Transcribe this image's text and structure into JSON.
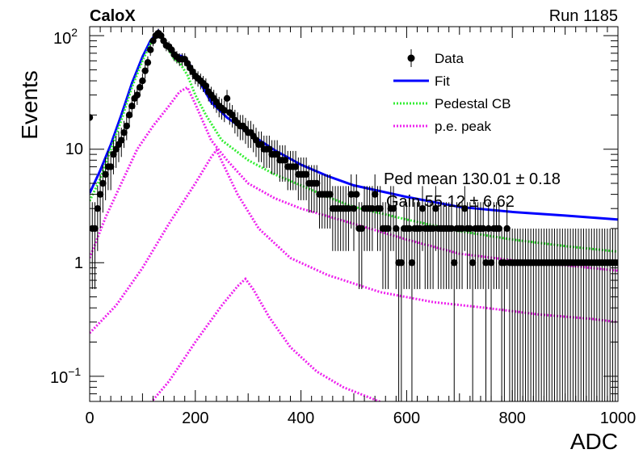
{
  "header": {
    "brand": "CaloX",
    "run": "Run 1185"
  },
  "overlay_text": {
    "line1": "Ped mean 130.01 ± 0.18",
    "line2": "Gain 55.12 ± 6.62"
  },
  "chart_data": {
    "type": "scatter",
    "xlabel": "ADC",
    "ylabel": "Events",
    "xlim": [
      0,
      1000
    ],
    "ylim": [
      0.06,
      120
    ],
    "yscale": "log",
    "x_ticks": [
      0,
      200,
      400,
      600,
      800,
      1000
    ],
    "x_tick_labels": [
      "0",
      "200",
      "400",
      "600",
      "800",
      "1000"
    ],
    "y_ticks": [
      0.1,
      1,
      10,
      100
    ],
    "y_tick_labels": {
      "base": "10",
      "exp_low": "−1",
      "one": "1",
      "ten": "10",
      "exp_high": "2"
    },
    "legend": {
      "position": "top-right",
      "entries": [
        {
          "label": "Data",
          "style": "marker",
          "color": "#000000"
        },
        {
          "label": "Fit",
          "style": "solid",
          "color": "#0000ff"
        },
        {
          "label": "Pedestal CB",
          "style": "dotted",
          "color": "#33ee33"
        },
        {
          "label": "p.e. peak",
          "style": "dotted",
          "color": "#ee22ee"
        }
      ]
    },
    "series": [
      {
        "name": "Data",
        "color": "#000000",
        "points": [
          [
            0,
            19
          ],
          [
            5,
            2
          ],
          [
            10,
            2
          ],
          [
            15,
            3
          ],
          [
            20,
            4
          ],
          [
            25,
            5
          ],
          [
            30,
            6
          ],
          [
            35,
            7
          ],
          [
            40,
            7
          ],
          [
            45,
            9
          ],
          [
            50,
            10
          ],
          [
            55,
            11
          ],
          [
            60,
            12
          ],
          [
            65,
            14
          ],
          [
            70,
            16
          ],
          [
            75,
            20
          ],
          [
            80,
            24
          ],
          [
            85,
            28
          ],
          [
            90,
            30
          ],
          [
            95,
            35
          ],
          [
            100,
            40
          ],
          [
            105,
            49
          ],
          [
            110,
            58
          ],
          [
            115,
            75
          ],
          [
            120,
            90
          ],
          [
            125,
            100
          ],
          [
            130,
            105
          ],
          [
            135,
            100
          ],
          [
            140,
            90
          ],
          [
            145,
            82
          ],
          [
            150,
            80
          ],
          [
            155,
            75
          ],
          [
            160,
            68
          ],
          [
            165,
            65
          ],
          [
            170,
            62
          ],
          [
            175,
            62
          ],
          [
            180,
            62
          ],
          [
            185,
            57
          ],
          [
            190,
            52
          ],
          [
            195,
            48
          ],
          [
            200,
            44
          ],
          [
            205,
            42
          ],
          [
            210,
            40
          ],
          [
            215,
            38
          ],
          [
            220,
            36
          ],
          [
            225,
            32
          ],
          [
            230,
            30
          ],
          [
            235,
            28
          ],
          [
            240,
            26
          ],
          [
            245,
            24
          ],
          [
            250,
            23
          ],
          [
            255,
            22
          ],
          [
            260,
            28
          ],
          [
            265,
            21
          ],
          [
            270,
            20
          ],
          [
            275,
            18
          ],
          [
            280,
            17
          ],
          [
            285,
            16
          ],
          [
            290,
            16
          ],
          [
            295,
            15
          ],
          [
            300,
            14
          ],
          [
            305,
            14
          ],
          [
            310,
            13
          ],
          [
            315,
            12
          ],
          [
            320,
            11
          ],
          [
            325,
            11
          ],
          [
            330,
            10
          ],
          [
            335,
            10
          ],
          [
            340,
            10
          ],
          [
            345,
            9
          ],
          [
            350,
            9
          ],
          [
            355,
            9
          ],
          [
            360,
            8
          ],
          [
            365,
            8
          ],
          [
            370,
            8
          ],
          [
            375,
            7
          ],
          [
            380,
            7
          ],
          [
            385,
            7
          ],
          [
            390,
            7
          ],
          [
            395,
            6
          ],
          [
            400,
            6
          ],
          [
            405,
            6
          ],
          [
            410,
            6
          ],
          [
            415,
            5
          ],
          [
            420,
            5
          ],
          [
            425,
            5
          ],
          [
            430,
            5
          ],
          [
            435,
            4
          ],
          [
            440,
            4
          ],
          [
            445,
            4
          ],
          [
            450,
            4
          ],
          [
            455,
            4
          ],
          [
            460,
            3
          ],
          [
            465,
            3
          ],
          [
            470,
            3
          ],
          [
            475,
            3
          ],
          [
            480,
            3
          ],
          [
            485,
            3
          ],
          [
            490,
            3
          ],
          [
            495,
            4
          ],
          [
            500,
            3
          ],
          [
            505,
            4
          ],
          [
            510,
            2
          ],
          [
            515,
            2
          ],
          [
            520,
            3
          ],
          [
            525,
            3
          ],
          [
            530,
            3
          ],
          [
            535,
            3
          ],
          [
            540,
            4
          ],
          [
            545,
            3
          ],
          [
            550,
            3
          ],
          [
            555,
            2
          ],
          [
            560,
            2
          ],
          [
            565,
            2
          ],
          [
            570,
            3
          ],
          [
            575,
            3
          ],
          [
            580,
            2
          ],
          [
            585,
            1
          ],
          [
            590,
            1
          ],
          [
            595,
            2
          ],
          [
            600,
            2
          ],
          [
            605,
            2
          ],
          [
            610,
            1
          ],
          [
            615,
            2
          ],
          [
            620,
            2
          ],
          [
            625,
            2
          ],
          [
            630,
            3
          ],
          [
            635,
            2
          ],
          [
            640,
            2
          ],
          [
            645,
            2
          ],
          [
            650,
            2
          ],
          [
            655,
            3
          ],
          [
            660,
            2
          ],
          [
            665,
            2
          ],
          [
            670,
            2
          ],
          [
            675,
            2
          ],
          [
            680,
            2
          ],
          [
            685,
            2
          ],
          [
            690,
            1
          ],
          [
            695,
            2
          ],
          [
            700,
            2
          ],
          [
            705,
            2
          ],
          [
            710,
            3
          ],
          [
            715,
            2
          ],
          [
            720,
            2
          ],
          [
            725,
            1
          ],
          [
            730,
            2
          ],
          [
            735,
            2
          ],
          [
            740,
            2
          ],
          [
            745,
            2
          ],
          [
            750,
            1
          ],
          [
            755,
            2
          ],
          [
            760,
            1
          ],
          [
            765,
            2
          ],
          [
            770,
            2
          ],
          [
            775,
            2
          ],
          [
            780,
            1
          ],
          [
            785,
            1
          ],
          [
            790,
            2
          ],
          [
            795,
            1
          ],
          [
            800,
            1
          ],
          [
            805,
            1
          ],
          [
            810,
            1
          ],
          [
            815,
            1
          ],
          [
            820,
            1
          ],
          [
            825,
            1
          ],
          [
            830,
            1
          ],
          [
            835,
            1
          ],
          [
            840,
            1
          ],
          [
            845,
            1
          ],
          [
            850,
            1
          ],
          [
            855,
            1
          ],
          [
            860,
            1
          ],
          [
            865,
            1
          ],
          [
            870,
            1
          ],
          [
            875,
            1
          ],
          [
            880,
            1
          ],
          [
            885,
            1
          ],
          [
            890,
            1
          ],
          [
            895,
            1
          ],
          [
            900,
            1
          ],
          [
            905,
            1
          ],
          [
            910,
            1
          ],
          [
            915,
            1
          ],
          [
            920,
            1
          ],
          [
            925,
            1
          ],
          [
            930,
            1
          ],
          [
            935,
            1
          ],
          [
            940,
            1
          ],
          [
            945,
            1
          ],
          [
            950,
            1
          ],
          [
            955,
            1
          ],
          [
            960,
            1
          ],
          [
            965,
            1
          ],
          [
            970,
            1
          ],
          [
            975,
            1
          ],
          [
            980,
            1
          ],
          [
            985,
            1
          ],
          [
            990,
            1
          ],
          [
            995,
            1
          ],
          [
            1000,
            1
          ]
        ]
      },
      {
        "name": "Fit",
        "color": "#0000ff",
        "points": [
          [
            0,
            4.1
          ],
          [
            20,
            6.5
          ],
          [
            40,
            11
          ],
          [
            60,
            20
          ],
          [
            80,
            38
          ],
          [
            100,
            65
          ],
          [
            115,
            90
          ],
          [
            130,
            110
          ],
          [
            145,
            80
          ],
          [
            160,
            68
          ],
          [
            175,
            66
          ],
          [
            190,
            55
          ],
          [
            210,
            38
          ],
          [
            230,
            26
          ],
          [
            260,
            19
          ],
          [
            300,
            14
          ],
          [
            350,
            9.8
          ],
          [
            400,
            7.3
          ],
          [
            450,
            5.8
          ],
          [
            500,
            4.8
          ],
          [
            600,
            3.8
          ],
          [
            700,
            3.1
          ],
          [
            800,
            2.8
          ],
          [
            900,
            2.6
          ],
          [
            1000,
            2.4
          ]
        ]
      },
      {
        "name": "Pedestal CB",
        "color": "#33ee33",
        "points": [
          [
            0,
            3.5
          ],
          [
            20,
            5.5
          ],
          [
            40,
            10
          ],
          [
            60,
            18
          ],
          [
            80,
            35
          ],
          [
            100,
            60
          ],
          [
            115,
            85
          ],
          [
            130,
            100
          ],
          [
            140,
            90
          ],
          [
            150,
            75
          ],
          [
            160,
            62
          ],
          [
            170,
            58
          ],
          [
            185,
            45
          ],
          [
            200,
            30
          ],
          [
            220,
            20
          ],
          [
            250,
            12
          ],
          [
            300,
            8
          ],
          [
            350,
            6
          ],
          [
            400,
            4.8
          ],
          [
            450,
            3.8
          ],
          [
            500,
            3.1
          ],
          [
            600,
            2.4
          ],
          [
            700,
            1.9
          ],
          [
            800,
            1.6
          ],
          [
            900,
            1.4
          ],
          [
            1000,
            1.25
          ]
        ]
      },
      {
        "name": "p.e. peak (1)",
        "color": "#ee22ee",
        "points": [
          [
            0,
            1.1
          ],
          [
            30,
            2.5
          ],
          [
            60,
            5
          ],
          [
            90,
            10
          ],
          [
            120,
            16
          ],
          [
            150,
            24
          ],
          [
            170,
            32
          ],
          [
            185,
            35
          ],
          [
            200,
            25
          ],
          [
            230,
            12
          ],
          [
            260,
            8
          ],
          [
            300,
            5
          ],
          [
            350,
            3.7
          ],
          [
            400,
            3.0
          ],
          [
            500,
            2.2
          ],
          [
            600,
            1.6
          ],
          [
            700,
            1.2
          ],
          [
            800,
            1.05
          ],
          [
            900,
            0.95
          ],
          [
            1000,
            0.85
          ]
        ]
      },
      {
        "name": "p.e. peak (2)",
        "color": "#ee22ee",
        "points": [
          [
            0,
            0.24
          ],
          [
            50,
            0.42
          ],
          [
            100,
            0.9
          ],
          [
            150,
            2.2
          ],
          [
            200,
            5
          ],
          [
            230,
            8.5
          ],
          [
            240,
            9.8
          ],
          [
            255,
            7
          ],
          [
            280,
            4
          ],
          [
            320,
            2
          ],
          [
            380,
            1.1
          ],
          [
            450,
            0.78
          ],
          [
            550,
            0.55
          ],
          [
            650,
            0.45
          ],
          [
            750,
            0.4
          ],
          [
            850,
            0.35
          ],
          [
            950,
            0.32
          ],
          [
            1000,
            0.3
          ]
        ]
      },
      {
        "name": "p.e. peak (3)",
        "color": "#ee22ee",
        "points": [
          [
            100,
            0.048
          ],
          [
            150,
            0.09
          ],
          [
            200,
            0.2
          ],
          [
            250,
            0.42
          ],
          [
            280,
            0.62
          ],
          [
            295,
            0.72
          ],
          [
            310,
            0.58
          ],
          [
            340,
            0.33
          ],
          [
            380,
            0.18
          ],
          [
            430,
            0.11
          ],
          [
            480,
            0.08
          ],
          [
            560,
            0.057
          ]
        ]
      }
    ]
  }
}
